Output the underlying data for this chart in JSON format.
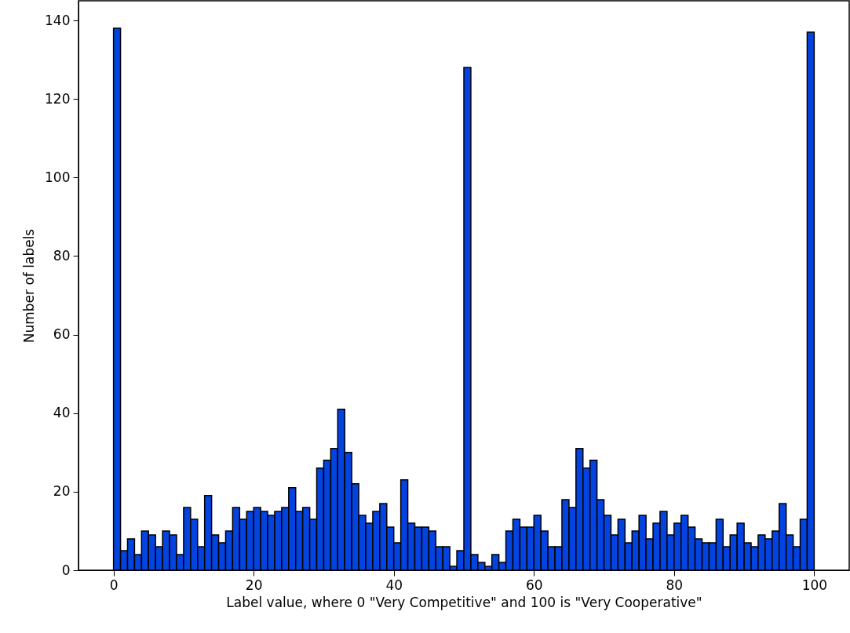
{
  "chart_data": {
    "type": "histogram",
    "xlabel": "Label value, where 0 \"Very Competitive\" and 100 is \"Very Cooperative\"",
    "ylabel": "Number of labels",
    "bins": [
      0,
      1,
      2,
      3,
      4,
      5,
      6,
      7,
      8,
      9,
      10,
      11,
      12,
      13,
      14,
      15,
      16,
      17,
      18,
      19,
      20,
      21,
      22,
      23,
      24,
      25,
      26,
      27,
      28,
      29,
      30,
      31,
      32,
      33,
      34,
      35,
      36,
      37,
      38,
      39,
      40,
      41,
      42,
      43,
      44,
      45,
      46,
      47,
      48,
      49,
      50,
      51,
      52,
      53,
      54,
      55,
      56,
      57,
      58,
      59,
      60,
      61,
      62,
      63,
      64,
      65,
      66,
      67,
      68,
      69,
      70,
      71,
      72,
      73,
      74,
      75,
      76,
      77,
      78,
      79,
      80,
      81,
      82,
      83,
      84,
      85,
      86,
      87,
      88,
      89,
      90,
      91,
      92,
      93,
      94,
      95,
      96,
      97,
      98,
      99,
      100
    ],
    "values": [
      138,
      5,
      8,
      4,
      10,
      9,
      6,
      10,
      9,
      4,
      16,
      13,
      6,
      19,
      9,
      7,
      10,
      16,
      13,
      15,
      16,
      15,
      14,
      15,
      16,
      21,
      15,
      16,
      13,
      26,
      28,
      31,
      41,
      30,
      22,
      14,
      12,
      15,
      17,
      11,
      7,
      23,
      12,
      11,
      11,
      10,
      6,
      6,
      1,
      5,
      128,
      4,
      2,
      1,
      4,
      2,
      10,
      13,
      11,
      11,
      14,
      10,
      6,
      6,
      18,
      16,
      31,
      26,
      28,
      18,
      14,
      9,
      13,
      7,
      10,
      14,
      8,
      12,
      15,
      9,
      12,
      14,
      11,
      8,
      7,
      7,
      13,
      6,
      9,
      12,
      7,
      6,
      9,
      8,
      10,
      17,
      9,
      6,
      13,
      137
    ],
    "color": "#0343df",
    "xlim": [
      -5,
      105
    ],
    "ylim": [
      0,
      145
    ],
    "xticks": [
      0,
      20,
      40,
      60,
      80,
      100
    ],
    "yticks": [
      0,
      20,
      40,
      60,
      80,
      100,
      120,
      140
    ],
    "grid": false
  }
}
